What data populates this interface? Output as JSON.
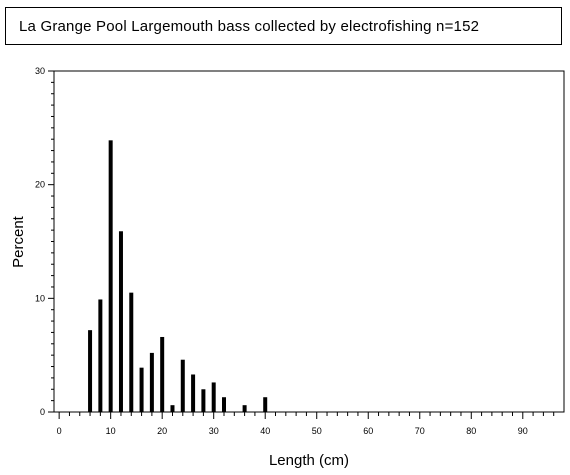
{
  "chart_data": {
    "type": "bar",
    "title": "La Grange Pool Largemouth bass collected by electrofishing n=152",
    "xlabel": "Length (cm)",
    "ylabel": "Percent",
    "xlim": [
      -1,
      98
    ],
    "ylim": [
      0,
      30
    ],
    "x_ticks": [
      0,
      10,
      20,
      30,
      40,
      50,
      60,
      70,
      80,
      90
    ],
    "y_ticks": [
      0,
      10,
      20,
      30
    ],
    "grid": false,
    "legend": "none",
    "bar_color": "#000000",
    "x": [
      6,
      8,
      10,
      12,
      14,
      16,
      18,
      20,
      22,
      24,
      26,
      28,
      30,
      32,
      36,
      40
    ],
    "values": [
      7.2,
      9.9,
      23.9,
      15.9,
      10.5,
      3.9,
      5.2,
      6.6,
      0.6,
      4.6,
      3.3,
      2.0,
      2.6,
      1.3,
      0.6,
      1.3
    ]
  }
}
